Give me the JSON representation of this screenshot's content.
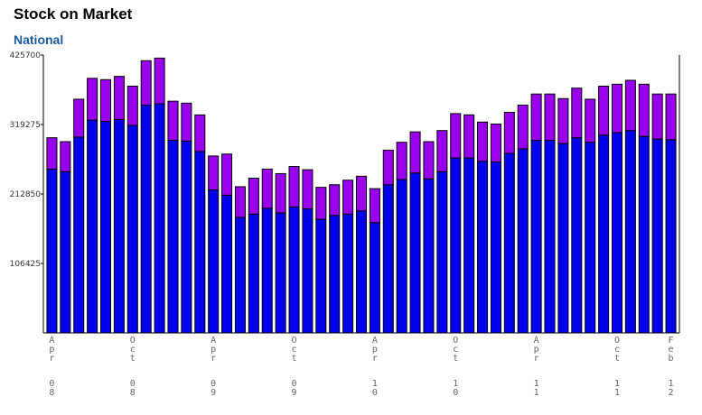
{
  "title": "Stock on Market",
  "subtitle": "National",
  "colors": {
    "lower": "#0000ee",
    "upper": "#9900ee",
    "outline": "#000000",
    "subtitle": "#1a5a9a"
  },
  "chart_data": {
    "type": "bar",
    "stacked": true,
    "title": "Stock on Market",
    "subtitle": "National",
    "xlabel": "",
    "ylabel": "",
    "ylim": [
      0,
      425700
    ],
    "yticks": [
      106425,
      212850,
      319275,
      425700
    ],
    "ytick_labels": [
      "106425",
      "212850",
      "319275",
      "425700"
    ],
    "x_tick_labels": [
      "Apr 08",
      "Oct 08",
      "Apr 09",
      "Oct 09",
      "Apr 10",
      "Oct 10",
      "Apr 11",
      "Oct 11",
      "Feb 12"
    ],
    "x_tick_bar_index": [
      0,
      6,
      12,
      18,
      24,
      30,
      36,
      42,
      46
    ],
    "grid": false,
    "legend": "none",
    "series": [
      {
        "values": [
          251000,
          247000,
          300000,
          326000,
          324000,
          327000,
          318000,
          349000,
          351000,
          295000,
          294000,
          278000,
          219000,
          211000,
          177000,
          182000,
          191000,
          184000,
          193000,
          190000,
          174000,
          180000,
          182000,
          187000,
          169000,
          227000,
          235000,
          245000,
          236000,
          247000,
          268000,
          268000,
          263000,
          262000,
          275000,
          282000,
          295000,
          295000,
          290000,
          299000,
          292000,
          303000,
          307000,
          310000,
          301000,
          297000,
          296000
        ]
      },
      {
        "values": [
          48000,
          46000,
          58000,
          64000,
          64000,
          66000,
          60000,
          68000,
          70000,
          60000,
          58000,
          56000,
          52000,
          63000,
          47000,
          55000,
          60000,
          60000,
          62000,
          60000,
          49000,
          47000,
          52000,
          53000,
          52000,
          53000,
          57000,
          63000,
          57000,
          63000,
          68000,
          66000,
          60000,
          58000,
          63000,
          67000,
          71000,
          71000,
          69000,
          76000,
          66000,
          75000,
          74000,
          77000,
          80000,
          69000,
          70000
        ]
      }
    ]
  }
}
